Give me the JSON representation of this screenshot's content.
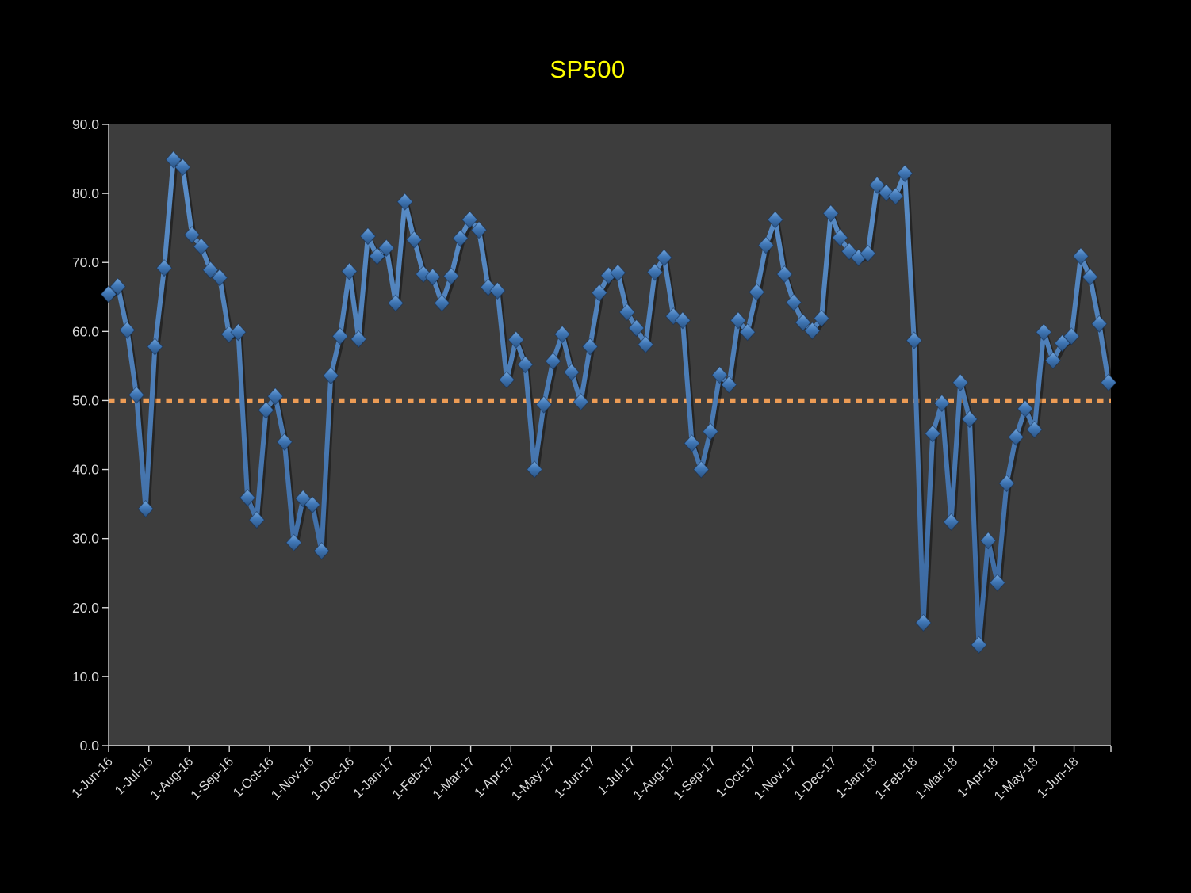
{
  "chart_data": {
    "type": "line",
    "title": "SP500",
    "title_color": "#ffff00",
    "page_bg": "#000000",
    "plot_bg": "#3d3d3d",
    "grid": "off",
    "legend": "none",
    "axis_color": "#d9d9d9",
    "y_axis": {
      "min": 0,
      "max": 90,
      "tick_step": 10,
      "tick_labels": [
        "0.0",
        "10.0",
        "20.0",
        "30.0",
        "40.0",
        "50.0",
        "60.0",
        "70.0",
        "80.0",
        "90.0"
      ]
    },
    "x_axis": {
      "unit": "weeks",
      "labels": [
        "1-Jun-16",
        "1-Jul-16",
        "1-Aug-16",
        "1-Sep-16",
        "1-Oct-16",
        "1-Nov-16",
        "1-Dec-16",
        "1-Jan-17",
        "1-Feb-17",
        "1-Mar-17",
        "1-Apr-17",
        "1-May-17",
        "1-Jun-17",
        "1-Jul-17",
        "1-Aug-17",
        "1-Sep-17",
        "1-Oct-17",
        "1-Nov-17",
        "1-Dec-17",
        "1-Jan-18",
        "1-Feb-18",
        "1-Mar-18",
        "1-Apr-18",
        "1-May-18",
        "1-Jun-18"
      ],
      "weeks_per_label": 4.345,
      "label_rotation_deg": -45
    },
    "reference_line": {
      "value": 50.0,
      "color": "#ed9c55",
      "style": "dotted"
    },
    "series": [
      {
        "name": "SP500",
        "color": "#4679b4",
        "marker": "diamond",
        "marker_color": "#3f76b5",
        "weekly_values": [
          65.4,
          66.5,
          60.2,
          50.8,
          34.3,
          57.8,
          69.2,
          84.9,
          83.8,
          74.0,
          72.3,
          68.9,
          67.8,
          59.6,
          59.9,
          35.9,
          32.7,
          48.6,
          50.6,
          44.0,
          29.4,
          35.8,
          34.9,
          28.2,
          53.6,
          59.3,
          68.7,
          58.9,
          73.8,
          70.9,
          72.1,
          64.1,
          78.8,
          73.3,
          68.3,
          67.9,
          64.1,
          68.0,
          73.5,
          76.2,
          74.7,
          66.4,
          65.9,
          53.0,
          58.8,
          55.2,
          40.0,
          49.4,
          55.7,
          59.6,
          54.1,
          49.8,
          57.8,
          65.6,
          68.1,
          68.5,
          62.8,
          60.5,
          58.1,
          68.6,
          70.7,
          62.2,
          61.6,
          43.8,
          40.0,
          45.5,
          53.7,
          52.3,
          61.6,
          59.9,
          65.7,
          72.5,
          76.2,
          68.3,
          64.2,
          61.3,
          60.1,
          61.9,
          77.1,
          73.6,
          71.6,
          70.7,
          71.3,
          81.2,
          80.1,
          79.6,
          82.9,
          58.7,
          17.8,
          45.2,
          49.6,
          32.4,
          52.6,
          47.3,
          14.6,
          29.7,
          23.6,
          38.0,
          44.7,
          48.8,
          45.8,
          59.9,
          55.8,
          58.3,
          59.3,
          70.9,
          67.9,
          61.1,
          52.6
        ]
      }
    ]
  }
}
